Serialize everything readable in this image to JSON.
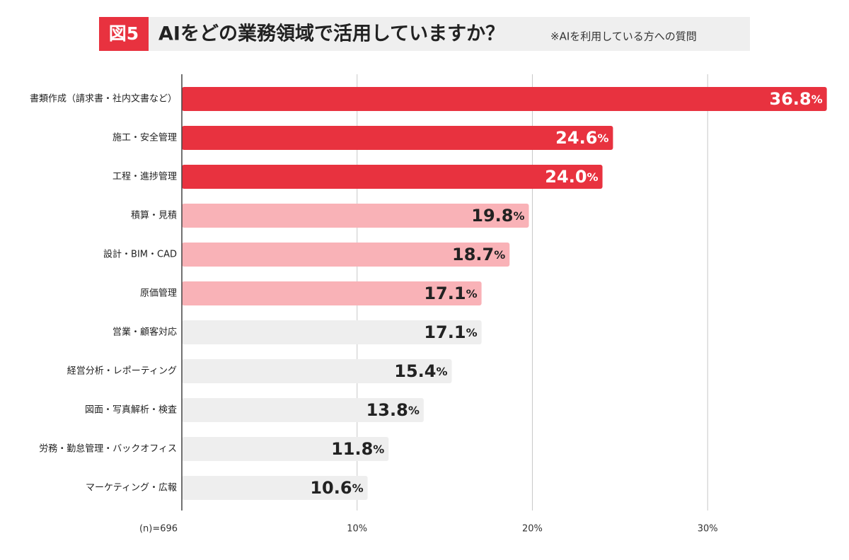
{
  "chart_data": {
    "type": "bar",
    "orientation": "horizontal",
    "badge": "図5",
    "title": "AIをどの業務領域で活用していますか？",
    "subtitle": "※AIを利用している方への質問",
    "categories": [
      "書類作成（請求書・社内文書など）",
      "施工・安全管理",
      "工程・進捗管理",
      "積算・見積",
      "設計・BIM・CAD",
      "原価管理",
      "営業・顧客対応",
      "経営分析・レポーティング",
      "図面・写真解析・検査",
      "労務・勤怠管理・バックオフィス",
      "マーケティング・広報"
    ],
    "values": [
      36.8,
      24.6,
      24.0,
      19.8,
      18.7,
      17.1,
      17.1,
      15.4,
      13.8,
      11.8,
      10.6
    ],
    "value_labels": [
      "36.8%",
      "24.6%",
      "24.0%",
      "19.8%",
      "18.7%",
      "17.1%",
      "17.1%",
      "15.4%",
      "13.8%",
      "11.8%",
      "10.6%"
    ],
    "colors": [
      "#e8323f",
      "#e8323f",
      "#e8323f",
      "#f9b2b7",
      "#f9b2b7",
      "#f9b2b7",
      "#eeeeee",
      "#eeeeee",
      "#eeeeee",
      "#eeeeee",
      "#eeeeee"
    ],
    "xlim": [
      0,
      37.5
    ],
    "xticks": [
      {
        "value": 10,
        "label": "10%"
      },
      {
        "value": 20,
        "label": "20%"
      },
      {
        "value": 30,
        "label": "30%"
      }
    ],
    "grid": true,
    "sample_note": "(n)=696"
  }
}
